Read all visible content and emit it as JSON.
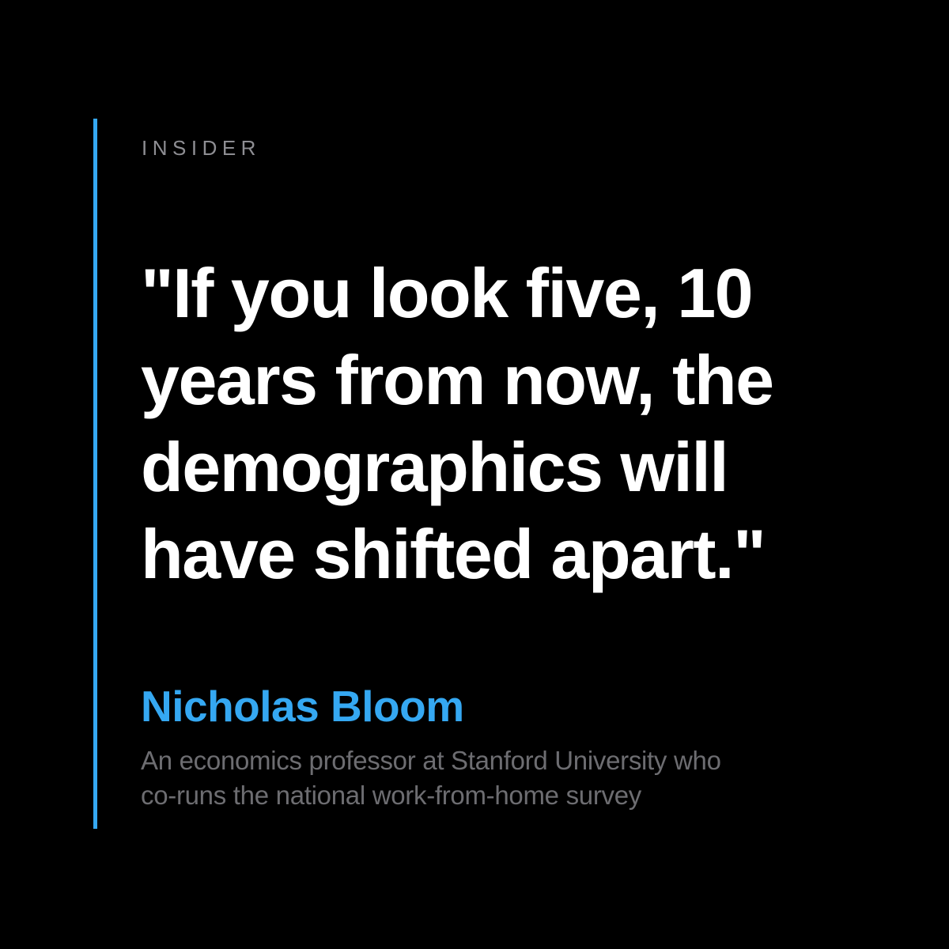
{
  "page": {
    "background_color": "#000000"
  },
  "accent": {
    "bar_color": "#35a8f2"
  },
  "brand": {
    "label": "INSIDER",
    "color": "#8e8e93"
  },
  "quote": {
    "full_text": "\"If you look five, 10 years from now, the demographics will have shifted apart.\"",
    "lines": [
      "\"If you look five, 10",
      "years from now, the",
      "demographics will",
      "have shifted apart.\""
    ],
    "color": "#ffffff"
  },
  "author": {
    "name": "Nicholas Bloom",
    "name_color": "#35a8f2",
    "description_lines": [
      "An economics professor at Stanford University who",
      "co-runs the national work-from-home survey"
    ],
    "description_color": "#6d6d71"
  }
}
